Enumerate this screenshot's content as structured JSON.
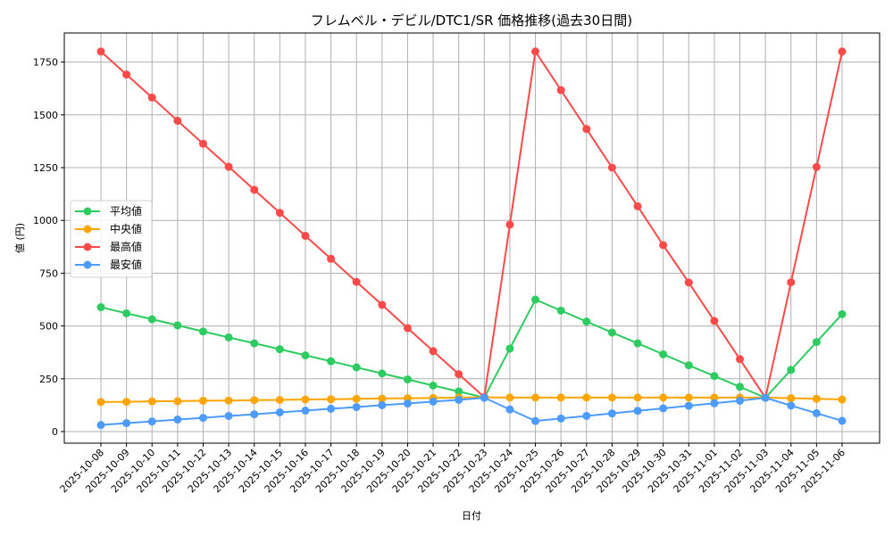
{
  "chart_data": {
    "type": "line",
    "title": "フレムベル・デビル/DTC1/SR 価格推移(過去30日間)",
    "xlabel": "日付",
    "ylabel": "値 (円)",
    "ylim": [
      -55,
      1880
    ],
    "yticks": [
      0,
      250,
      500,
      750,
      1000,
      1250,
      1500,
      1750
    ],
    "grid": true,
    "legend_position": "center left",
    "x": [
      "2025-10-08",
      "2025-10-09",
      "2025-10-10",
      "2025-10-11",
      "2025-10-12",
      "2025-10-13",
      "2025-10-14",
      "2025-10-15",
      "2025-10-16",
      "2025-10-17",
      "2025-10-18",
      "2025-10-19",
      "2025-10-20",
      "2025-10-21",
      "2025-10-22",
      "2025-10-23",
      "2025-10-24",
      "2025-10-25",
      "2025-10-26",
      "2025-10-27",
      "2025-10-28",
      "2025-10-29",
      "2025-10-30",
      "2025-10-31",
      "2025-11-01",
      "2025-11-02",
      "2025-11-03",
      "2025-11-04",
      "2025-11-05",
      "2025-11-06"
    ],
    "series": [
      {
        "name": "平均値",
        "color": "#2ecc60",
        "values": [
          589,
          560,
          532,
          503,
          474,
          446,
          418,
          390,
          361,
          333,
          304,
          275,
          247,
          218,
          190,
          161,
          393,
          625,
          573,
          521,
          469,
          418,
          366,
          314,
          263,
          212,
          160,
          292,
          424,
          556
        ]
      },
      {
        "name": "中央値",
        "color": "#ffa500",
        "values": [
          140,
          141,
          143,
          144,
          146,
          147,
          149,
          150,
          152,
          153,
          155,
          156,
          158,
          159,
          161,
          162,
          161,
          161,
          161,
          161,
          161,
          161,
          161,
          161,
          161,
          161,
          161,
          158,
          155,
          152
        ]
      },
      {
        "name": "最高値",
        "color": "#ff4a4a",
        "values": [
          1800,
          1691,
          1582,
          1472,
          1363,
          1254,
          1145,
          1036,
          927,
          818,
          709,
          600,
          490,
          381,
          272,
          163,
          980,
          1800,
          1617,
          1433,
          1250,
          1067,
          883,
          706,
          524,
          343,
          160,
          707,
          1253,
          1800
        ]
      },
      {
        "name": "最安値",
        "color": "#4d9bff",
        "values": [
          31,
          40,
          48,
          57,
          65,
          74,
          82,
          91,
          99,
          108,
          116,
          125,
          133,
          142,
          150,
          160,
          105,
          50,
          62,
          74,
          86,
          98,
          110,
          122,
          134,
          146,
          160,
          123,
          87,
          51
        ]
      }
    ]
  }
}
